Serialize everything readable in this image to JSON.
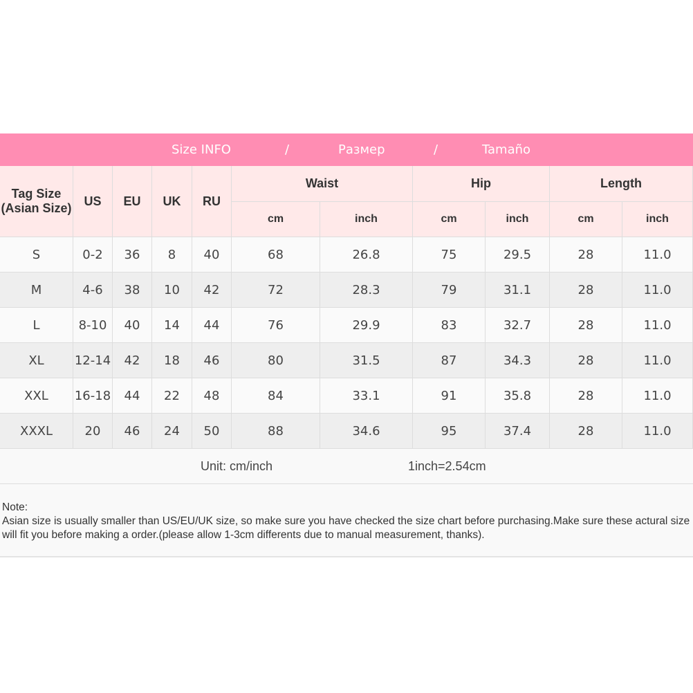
{
  "title": {
    "parts": [
      "Size INFO",
      "/",
      "Размер",
      "/",
      "Tamaño"
    ]
  },
  "colors": {
    "banner": "#ff8db3",
    "header_bg": "#ffe9e9",
    "row_light": "#fafafa",
    "row_dark": "#eeeeee"
  },
  "headers": {
    "tag": "Tag Size (Asian Size)",
    "us": "US",
    "eu": "EU",
    "uk": "UK",
    "ru": "RU",
    "waist": "Waist",
    "hip": "Hip",
    "length": "Length",
    "units": [
      "cm",
      "inch",
      "cm",
      "inch",
      "cm",
      "inch"
    ]
  },
  "rows": [
    [
      "S",
      "0-2",
      "36",
      "8",
      "40",
      "68",
      "26.8",
      "75",
      "29.5",
      "28",
      "11.0"
    ],
    [
      "M",
      "4-6",
      "38",
      "10",
      "42",
      "72",
      "28.3",
      "79",
      "31.1",
      "28",
      "11.0"
    ],
    [
      "L",
      "8-10",
      "40",
      "14",
      "44",
      "76",
      "29.9",
      "83",
      "32.7",
      "28",
      "11.0"
    ],
    [
      "XL",
      "12-14",
      "42",
      "18",
      "46",
      "80",
      "31.5",
      "87",
      "34.3",
      "28",
      "11.0"
    ],
    [
      "XXL",
      "16-18",
      "44",
      "22",
      "48",
      "84",
      "33.1",
      "91",
      "35.8",
      "28",
      "11.0"
    ],
    [
      "XXXL",
      "20",
      "46",
      "24",
      "50",
      "88",
      "34.6",
      "95",
      "37.4",
      "28",
      "11.0"
    ]
  ],
  "unit_row": {
    "unit": "Unit: cm/inch",
    "conversion": "1inch=2.54cm"
  },
  "note": {
    "label": "Note:",
    "text": "Asian size is usually smaller than US/EU/UK size, so make sure you have checked the size chart before purchasing.Make sure these actural size will fit you before making a order.(please allow 1-3cm differents due to manual measurement, thanks)."
  }
}
